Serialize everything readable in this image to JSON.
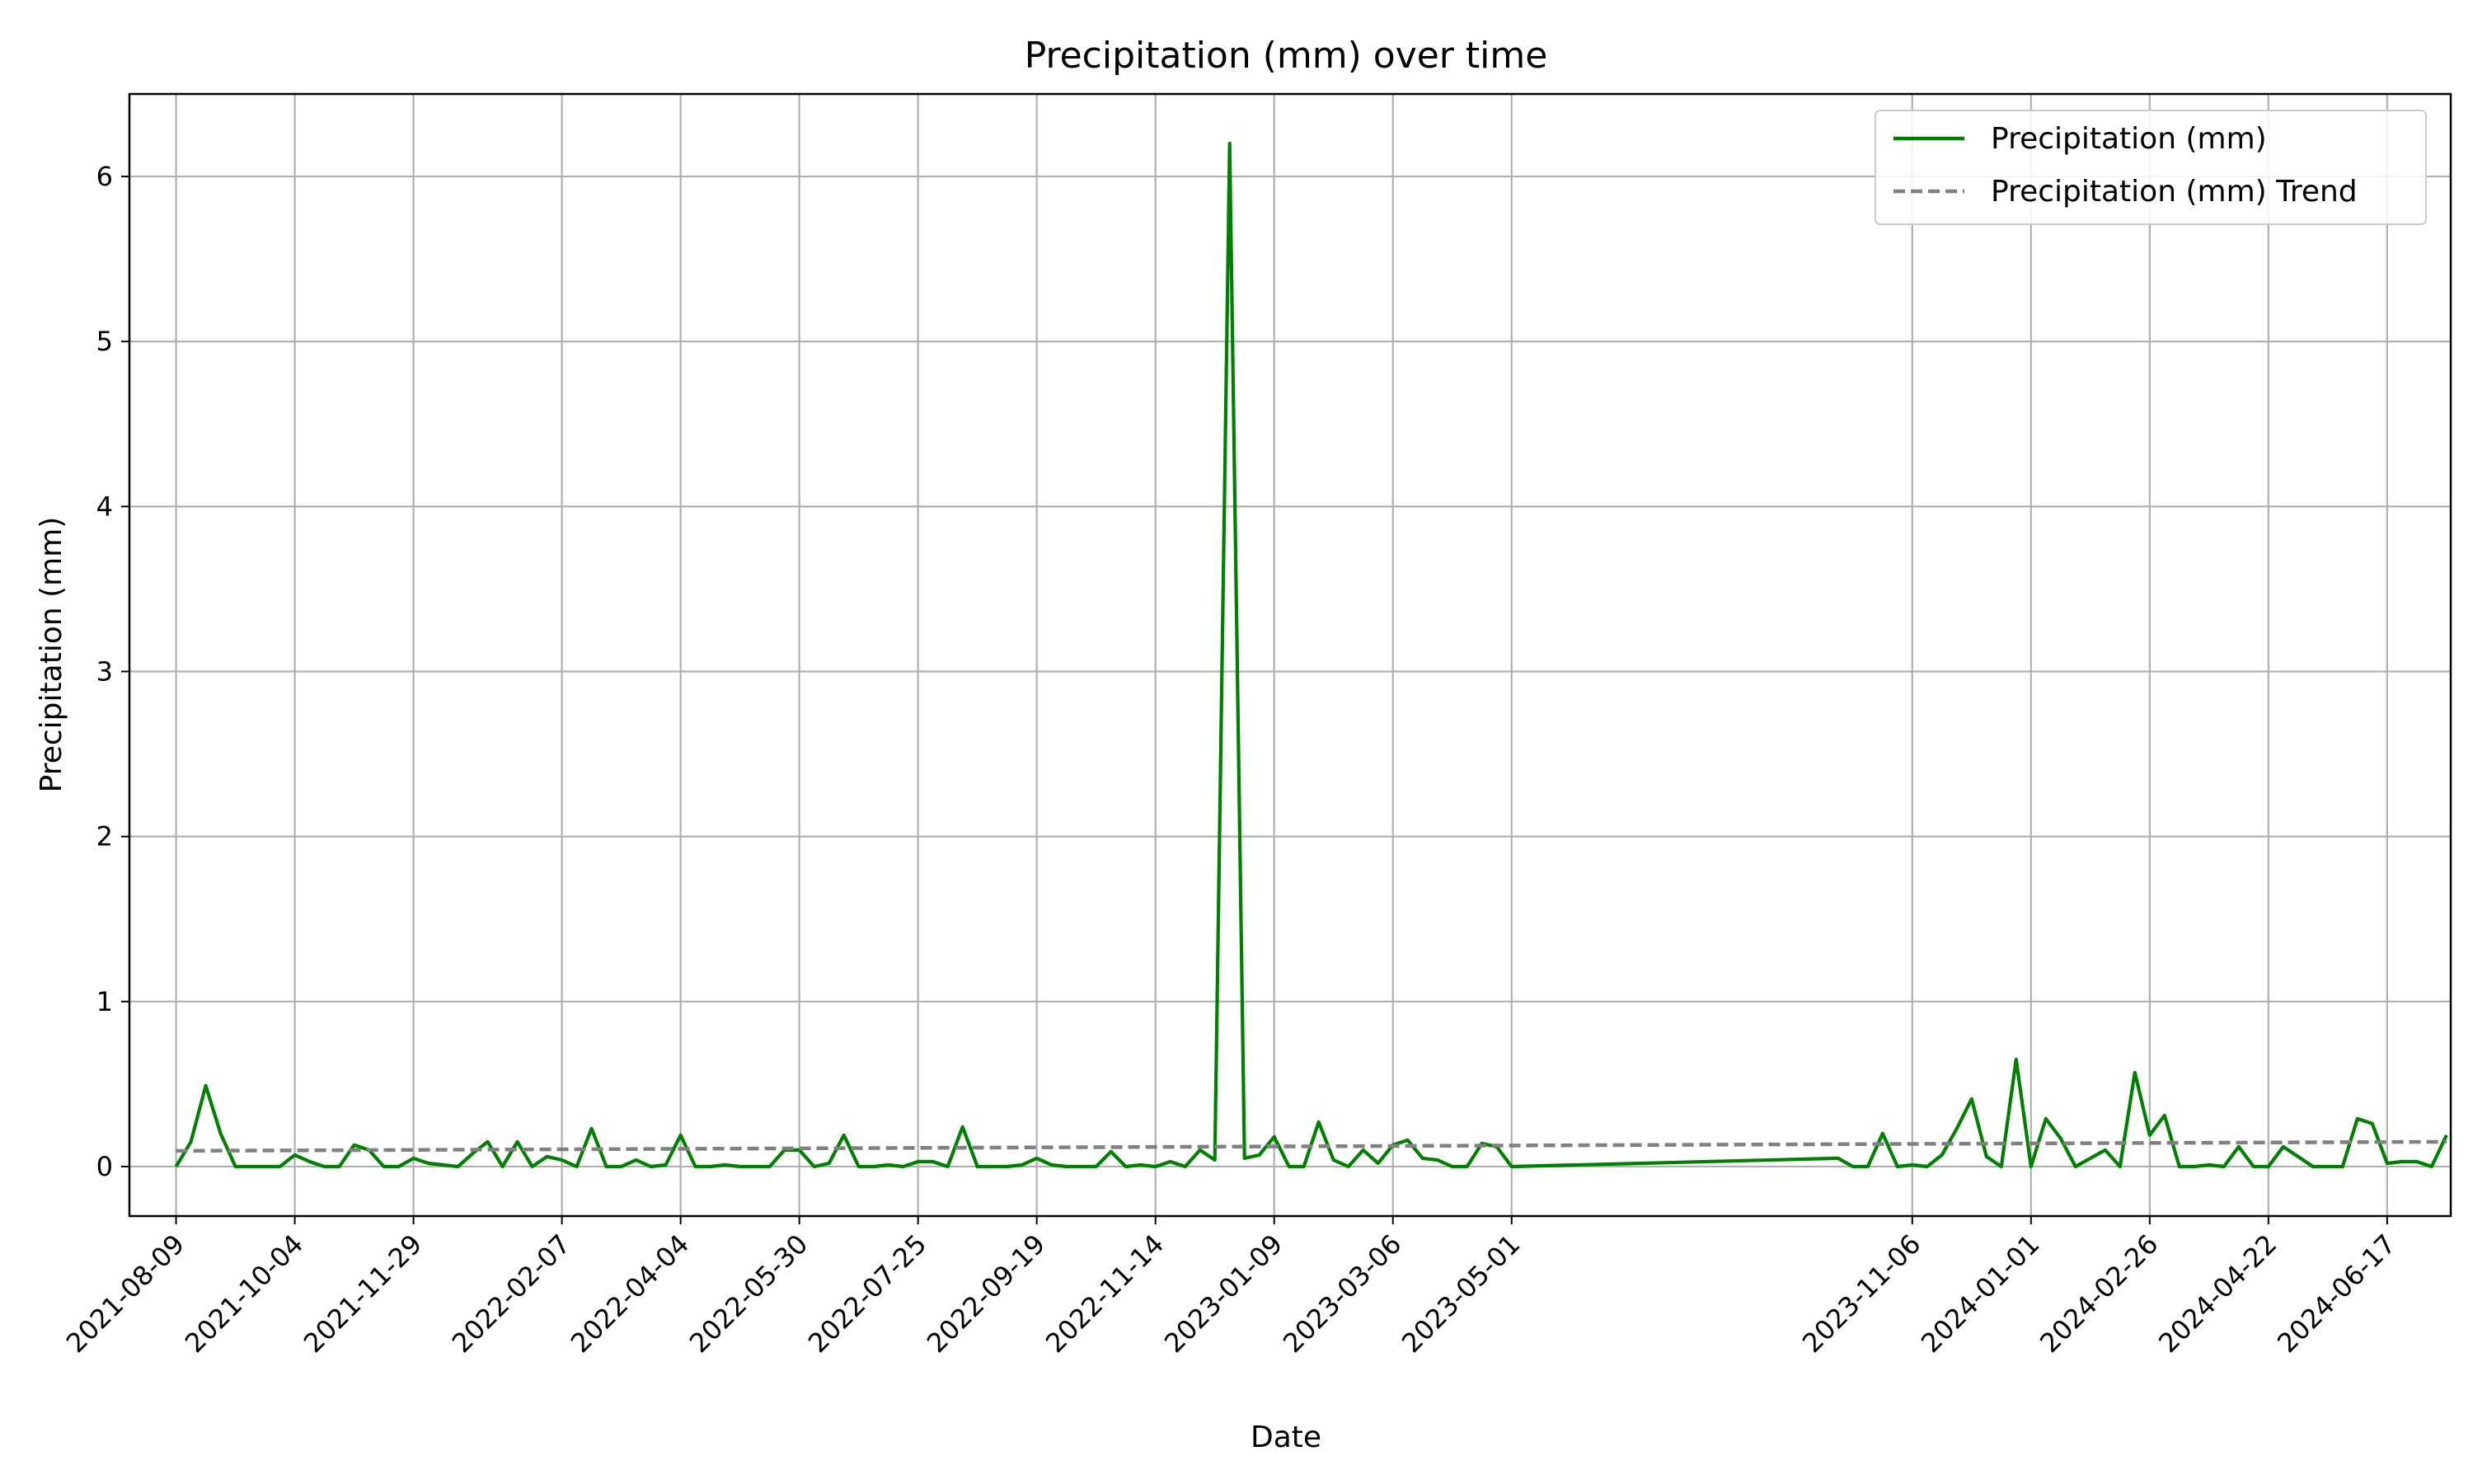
{
  "chart_data": {
    "type": "line",
    "title": "Precipitation (mm) over time",
    "xlabel": "Date",
    "ylabel": "Precipitation (mm)",
    "xlim": [
      "2021-07-18",
      "2024-07-17"
    ],
    "ylim": [
      -0.3,
      6.5
    ],
    "grid": true,
    "legend_position": "top-right",
    "x_ticks": [
      "2021-08-09",
      "2021-10-04",
      "2021-11-29",
      "2022-02-07",
      "2022-04-04",
      "2022-05-30",
      "2022-07-25",
      "2022-09-19",
      "2022-11-14",
      "2023-01-09",
      "2023-03-06",
      "2023-05-01",
      "2023-11-06",
      "2024-01-01",
      "2024-02-26",
      "2024-04-22",
      "2024-06-17"
    ],
    "y_ticks": [
      0,
      1,
      2,
      3,
      4,
      5,
      6
    ],
    "series": [
      {
        "name": "Precipitation (mm)",
        "color": "#008000",
        "style": "solid",
        "points": [
          [
            "2021-08-09",
            0.0
          ],
          [
            "2021-08-16",
            0.15
          ],
          [
            "2021-08-23",
            0.49
          ],
          [
            "2021-08-30",
            0.2
          ],
          [
            "2021-09-06",
            0.0
          ],
          [
            "2021-09-13",
            0.0
          ],
          [
            "2021-09-20",
            0.0
          ],
          [
            "2021-09-27",
            0.0
          ],
          [
            "2021-10-04",
            0.07
          ],
          [
            "2021-10-11",
            0.03
          ],
          [
            "2021-10-18",
            0.0
          ],
          [
            "2021-10-25",
            0.0
          ],
          [
            "2021-11-01",
            0.13
          ],
          [
            "2021-11-08",
            0.1
          ],
          [
            "2021-11-15",
            0.0
          ],
          [
            "2021-11-22",
            0.0
          ],
          [
            "2021-11-29",
            0.05
          ],
          [
            "2021-12-06",
            0.02
          ],
          [
            "2021-12-13",
            0.01
          ],
          [
            "2021-12-20",
            0.0
          ],
          [
            "2021-12-27",
            0.08
          ],
          [
            "2022-01-03",
            0.15
          ],
          [
            "2022-01-10",
            0.0
          ],
          [
            "2022-01-17",
            0.15
          ],
          [
            "2022-01-24",
            0.0
          ],
          [
            "2022-01-31",
            0.06
          ],
          [
            "2022-02-07",
            0.04
          ],
          [
            "2022-02-14",
            0.0
          ],
          [
            "2022-02-21",
            0.23
          ],
          [
            "2022-02-28",
            0.0
          ],
          [
            "2022-03-07",
            0.0
          ],
          [
            "2022-03-14",
            0.04
          ],
          [
            "2022-03-21",
            0.0
          ],
          [
            "2022-03-28",
            0.01
          ],
          [
            "2022-04-04",
            0.19
          ],
          [
            "2022-04-11",
            0.0
          ],
          [
            "2022-04-18",
            0.0
          ],
          [
            "2022-04-25",
            0.01
          ],
          [
            "2022-05-02",
            0.0
          ],
          [
            "2022-05-09",
            0.0
          ],
          [
            "2022-05-16",
            0.0
          ],
          [
            "2022-05-23",
            0.1
          ],
          [
            "2022-05-30",
            0.1
          ],
          [
            "2022-06-06",
            0.0
          ],
          [
            "2022-06-13",
            0.02
          ],
          [
            "2022-06-20",
            0.19
          ],
          [
            "2022-06-27",
            0.0
          ],
          [
            "2022-07-04",
            0.0
          ],
          [
            "2022-07-11",
            0.01
          ],
          [
            "2022-07-18",
            0.0
          ],
          [
            "2022-07-25",
            0.03
          ],
          [
            "2022-08-01",
            0.03
          ],
          [
            "2022-08-08",
            0.0
          ],
          [
            "2022-08-15",
            0.24
          ],
          [
            "2022-08-22",
            0.0
          ],
          [
            "2022-08-29",
            0.0
          ],
          [
            "2022-09-05",
            0.0
          ],
          [
            "2022-09-12",
            0.01
          ],
          [
            "2022-09-19",
            0.05
          ],
          [
            "2022-09-26",
            0.01
          ],
          [
            "2022-10-03",
            0.0
          ],
          [
            "2022-10-10",
            0.0
          ],
          [
            "2022-10-17",
            0.0
          ],
          [
            "2022-10-24",
            0.09
          ],
          [
            "2022-10-31",
            0.0
          ],
          [
            "2022-11-07",
            0.01
          ],
          [
            "2022-11-14",
            0.0
          ],
          [
            "2022-11-21",
            0.03
          ],
          [
            "2022-11-28",
            0.0
          ],
          [
            "2022-12-05",
            0.1
          ],
          [
            "2022-12-12",
            0.04
          ],
          [
            "2022-12-19",
            6.2
          ],
          [
            "2022-12-26",
            0.05
          ],
          [
            "2023-01-02",
            0.07
          ],
          [
            "2023-01-09",
            0.18
          ],
          [
            "2023-01-16",
            0.0
          ],
          [
            "2023-01-23",
            0.0
          ],
          [
            "2023-01-30",
            0.27
          ],
          [
            "2023-02-06",
            0.04
          ],
          [
            "2023-02-13",
            0.0
          ],
          [
            "2023-02-20",
            0.1
          ],
          [
            "2023-02-27",
            0.02
          ],
          [
            "2023-03-06",
            0.13
          ],
          [
            "2023-03-13",
            0.16
          ],
          [
            "2023-03-20",
            0.05
          ],
          [
            "2023-03-27",
            0.04
          ],
          [
            "2023-04-03",
            0.0
          ],
          [
            "2023-04-10",
            0.0
          ],
          [
            "2023-04-17",
            0.14
          ],
          [
            "2023-04-24",
            0.12
          ],
          [
            "2023-05-01",
            0.0
          ],
          [
            "2023-10-02",
            0.05
          ],
          [
            "2023-10-09",
            0.0
          ],
          [
            "2023-10-16",
            0.0
          ],
          [
            "2023-10-23",
            0.2
          ],
          [
            "2023-10-30",
            0.0
          ],
          [
            "2023-11-06",
            0.01
          ],
          [
            "2023-11-13",
            0.0
          ],
          [
            "2023-11-20",
            0.07
          ],
          [
            "2023-11-27",
            0.23
          ],
          [
            "2023-12-04",
            0.41
          ],
          [
            "2023-12-11",
            0.06
          ],
          [
            "2023-12-18",
            0.0
          ],
          [
            "2023-12-25",
            0.65
          ],
          [
            "2024-01-01",
            0.0
          ],
          [
            "2024-01-08",
            0.29
          ],
          [
            "2024-01-15",
            0.17
          ],
          [
            "2024-01-22",
            0.0
          ],
          [
            "2024-01-29",
            0.05
          ],
          [
            "2024-02-05",
            0.1
          ],
          [
            "2024-02-12",
            0.0
          ],
          [
            "2024-02-19",
            0.57
          ],
          [
            "2024-02-26",
            0.19
          ],
          [
            "2024-03-04",
            0.31
          ],
          [
            "2024-03-11",
            0.0
          ],
          [
            "2024-03-18",
            0.0
          ],
          [
            "2024-03-25",
            0.01
          ],
          [
            "2024-04-01",
            0.0
          ],
          [
            "2024-04-08",
            0.12
          ],
          [
            "2024-04-15",
            0.0
          ],
          [
            "2024-04-22",
            0.0
          ],
          [
            "2024-04-29",
            0.12
          ],
          [
            "2024-05-06",
            0.06
          ],
          [
            "2024-05-13",
            0.0
          ],
          [
            "2024-05-20",
            0.0
          ],
          [
            "2024-05-27",
            0.0
          ],
          [
            "2024-06-03",
            0.29
          ],
          [
            "2024-06-10",
            0.26
          ],
          [
            "2024-06-17",
            0.02
          ],
          [
            "2024-06-24",
            0.03
          ],
          [
            "2024-07-01",
            0.03
          ],
          [
            "2024-07-08",
            0.0
          ],
          [
            "2024-07-15",
            0.19
          ]
        ]
      },
      {
        "name": "Precipitation (mm) Trend",
        "color": "#808080",
        "style": "dashed",
        "points": [
          [
            "2021-08-09",
            0.095
          ],
          [
            "2024-07-15",
            0.15
          ]
        ]
      }
    ]
  }
}
